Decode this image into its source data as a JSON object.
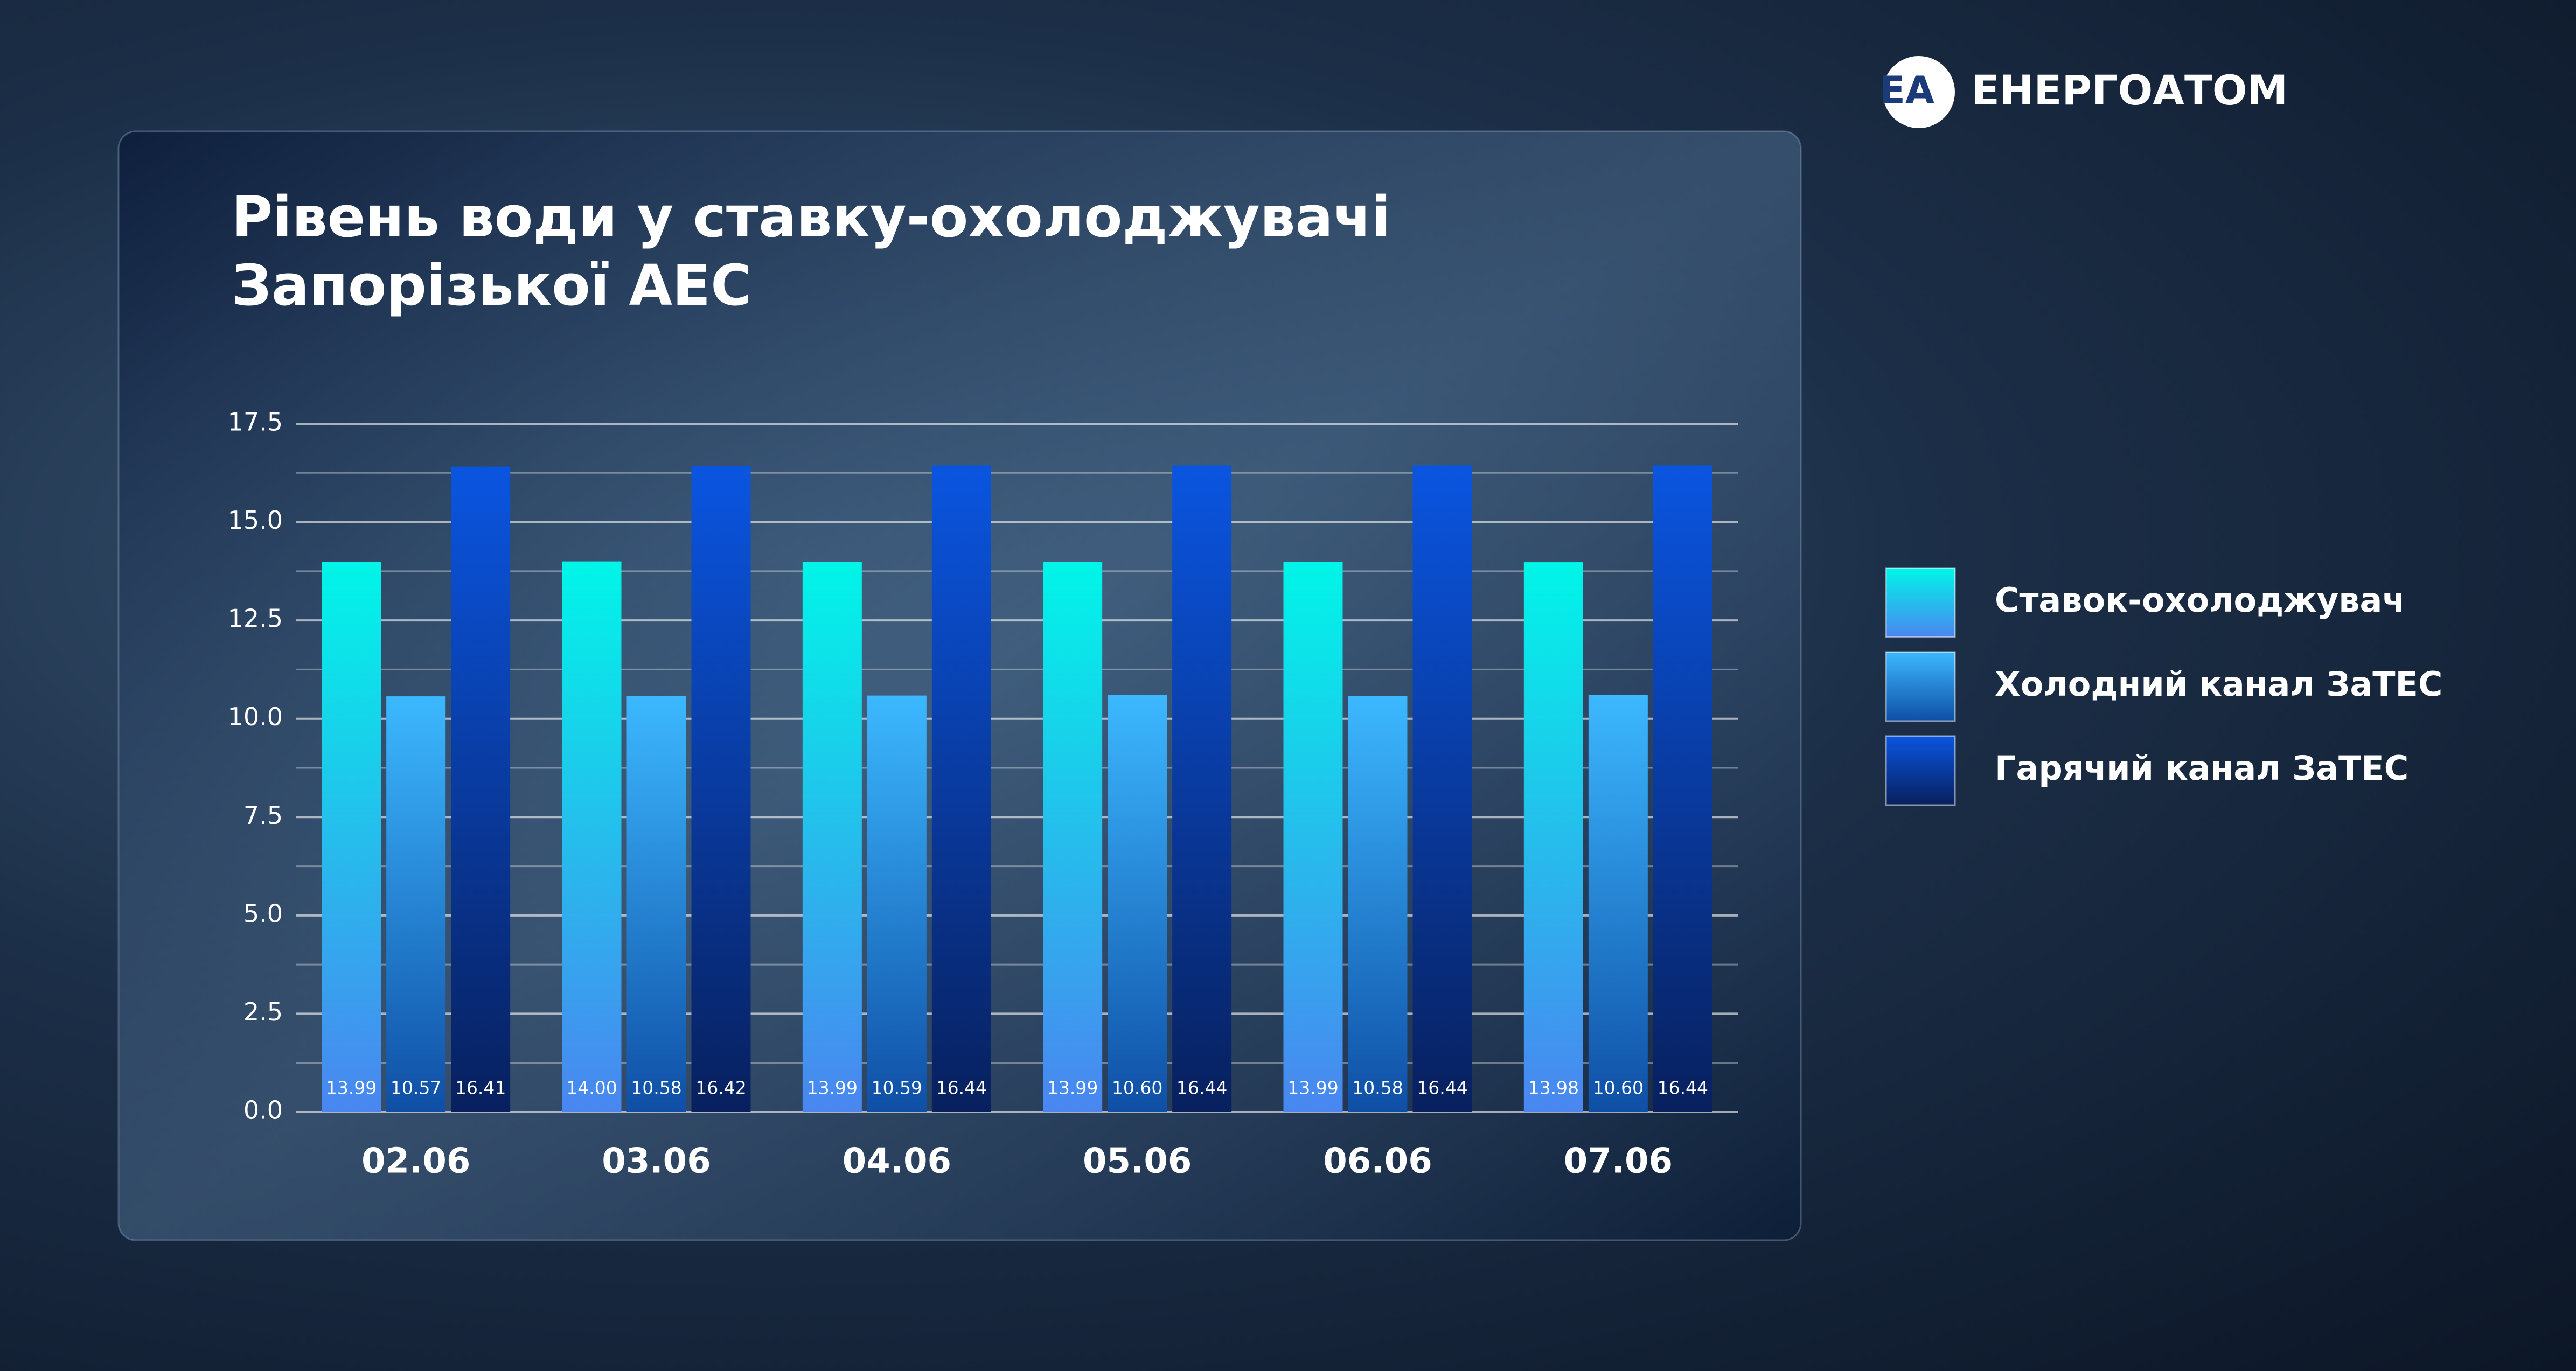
{
  "header": {
    "brand": "ЕНЕРГОАТОМ"
  },
  "chart_data": {
    "type": "bar",
    "title": "Рівень води у ставку-охолоджувачі Запорізької АЕС",
    "categories": [
      "02.06",
      "03.06",
      "04.06",
      "05.06",
      "06.06",
      "07.06"
    ],
    "series": [
      {
        "name": "Ставок-охолоджувач",
        "color": "#00f5e8",
        "values": [
          13.99,
          14.0,
          13.99,
          13.99,
          13.99,
          13.98
        ],
        "value_labels": [
          "13.99",
          "14.00",
          "13.99",
          "13.99",
          "13.99",
          "13.98"
        ]
      },
      {
        "name": "Холодний канал ЗаТЕС",
        "color": "#3cb8ff",
        "values": [
          10.57,
          10.58,
          10.59,
          10.6,
          10.58,
          10.6
        ],
        "value_labels": [
          "10.57",
          "10.58",
          "10.59",
          "10.60",
          "10.58",
          "10.60"
        ]
      },
      {
        "name": "Гарячий канал ЗаТЕС",
        "color": "#0a55e0",
        "values": [
          16.41,
          16.42,
          16.44,
          16.44,
          16.44,
          16.44
        ],
        "value_labels": [
          "16.41",
          "16.42",
          "16.44",
          "16.44",
          "16.44",
          "16.44"
        ]
      }
    ],
    "ylim": [
      0,
      17.5
    ],
    "yticks": [
      {
        "value": 0,
        "label": "0.0"
      },
      2.5,
      {
        "value": 5,
        "label": "5.0"
      },
      7.5,
      {
        "value": 10,
        "label": "10.0"
      },
      12.5,
      {
        "value": 15,
        "label": "15.0"
      },
      17.5
    ],
    "minor_yticks": [
      1.25,
      3.75,
      6.25,
      8.75,
      11.25,
      13.75,
      16.25
    ],
    "grid": true,
    "legend": "right"
  }
}
